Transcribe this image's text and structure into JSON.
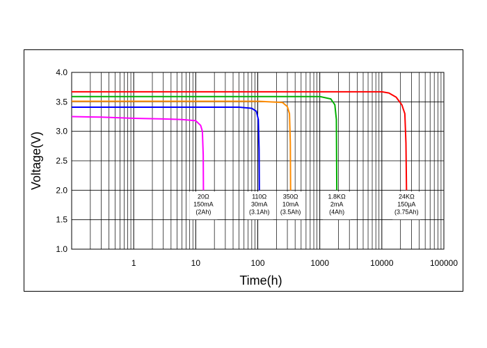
{
  "chart_data": {
    "type": "line",
    "title": "",
    "xlabel": "Time(h)",
    "ylabel": "Voltage(V)",
    "xscale": "log",
    "xlim": [
      0.1,
      100000
    ],
    "ylim": [
      1.0,
      4.0
    ],
    "grid": true,
    "x_tick_labels": [
      "1",
      "10",
      "100",
      "1000",
      "10000",
      "100000"
    ],
    "x_tick_values": [
      1,
      10,
      100,
      1000,
      10000,
      100000
    ],
    "y_tick_labels": [
      "1.0",
      "1.5",
      "2.0",
      "2.5",
      "3.0",
      "3.5",
      "4.0"
    ],
    "y_tick_values": [
      1.0,
      1.5,
      2.0,
      2.5,
      3.0,
      3.5,
      4.0
    ],
    "series": [
      {
        "name": "20Ω",
        "color": "#ff00ff",
        "points": [
          [
            0.1,
            3.25
          ],
          [
            0.3,
            3.24
          ],
          [
            1,
            3.22
          ],
          [
            3,
            3.21
          ],
          [
            6,
            3.2
          ],
          [
            10,
            3.18
          ],
          [
            12,
            3.1
          ],
          [
            12.8,
            3.0
          ],
          [
            13.2,
            2.6
          ],
          [
            13.3,
            2.0
          ]
        ],
        "annotation": [
          "20Ω",
          "150mA",
          "(2Ah)"
        ]
      },
      {
        "name": "110Ω",
        "color": "#0000ff",
        "points": [
          [
            0.1,
            3.41
          ],
          [
            1,
            3.41
          ],
          [
            10,
            3.41
          ],
          [
            50,
            3.41
          ],
          [
            80,
            3.39
          ],
          [
            95,
            3.34
          ],
          [
            102,
            3.2
          ],
          [
            105,
            2.7
          ],
          [
            106,
            2.0
          ]
        ],
        "annotation": [
          "110Ω",
          "30mA",
          "(3.1Ah)"
        ]
      },
      {
        "name": "350Ω",
        "color": "#ff8c00",
        "points": [
          [
            0.1,
            3.51
          ],
          [
            1,
            3.51
          ],
          [
            10,
            3.51
          ],
          [
            100,
            3.51
          ],
          [
            250,
            3.49
          ],
          [
            300,
            3.42
          ],
          [
            325,
            3.3
          ],
          [
            335,
            2.8
          ],
          [
            338,
            2.0
          ]
        ],
        "annotation": [
          "350Ω",
          "10mA",
          "(3.5Ah)"
        ]
      },
      {
        "name": "1.8KΩ",
        "color": "#00b000",
        "points": [
          [
            0.1,
            3.59
          ],
          [
            1,
            3.59
          ],
          [
            10,
            3.59
          ],
          [
            100,
            3.59
          ],
          [
            1000,
            3.59
          ],
          [
            1500,
            3.55
          ],
          [
            1750,
            3.45
          ],
          [
            1850,
            3.2
          ],
          [
            1880,
            2.0
          ]
        ],
        "annotation": [
          "1.8KΩ",
          "2mA",
          "(4Ah)"
        ]
      },
      {
        "name": "24KΩ",
        "color": "#ff0000",
        "points": [
          [
            0.1,
            3.67
          ],
          [
            1,
            3.67
          ],
          [
            10,
            3.67
          ],
          [
            100,
            3.67
          ],
          [
            1000,
            3.67
          ],
          [
            10000,
            3.67
          ],
          [
            13000,
            3.65
          ],
          [
            17000,
            3.58
          ],
          [
            21000,
            3.45
          ],
          [
            23500,
            3.3
          ],
          [
            24500,
            2.8
          ],
          [
            25000,
            2.0
          ]
        ],
        "annotation": [
          "24KΩ",
          "150µA",
          "(3.75Ah)"
        ]
      }
    ]
  }
}
